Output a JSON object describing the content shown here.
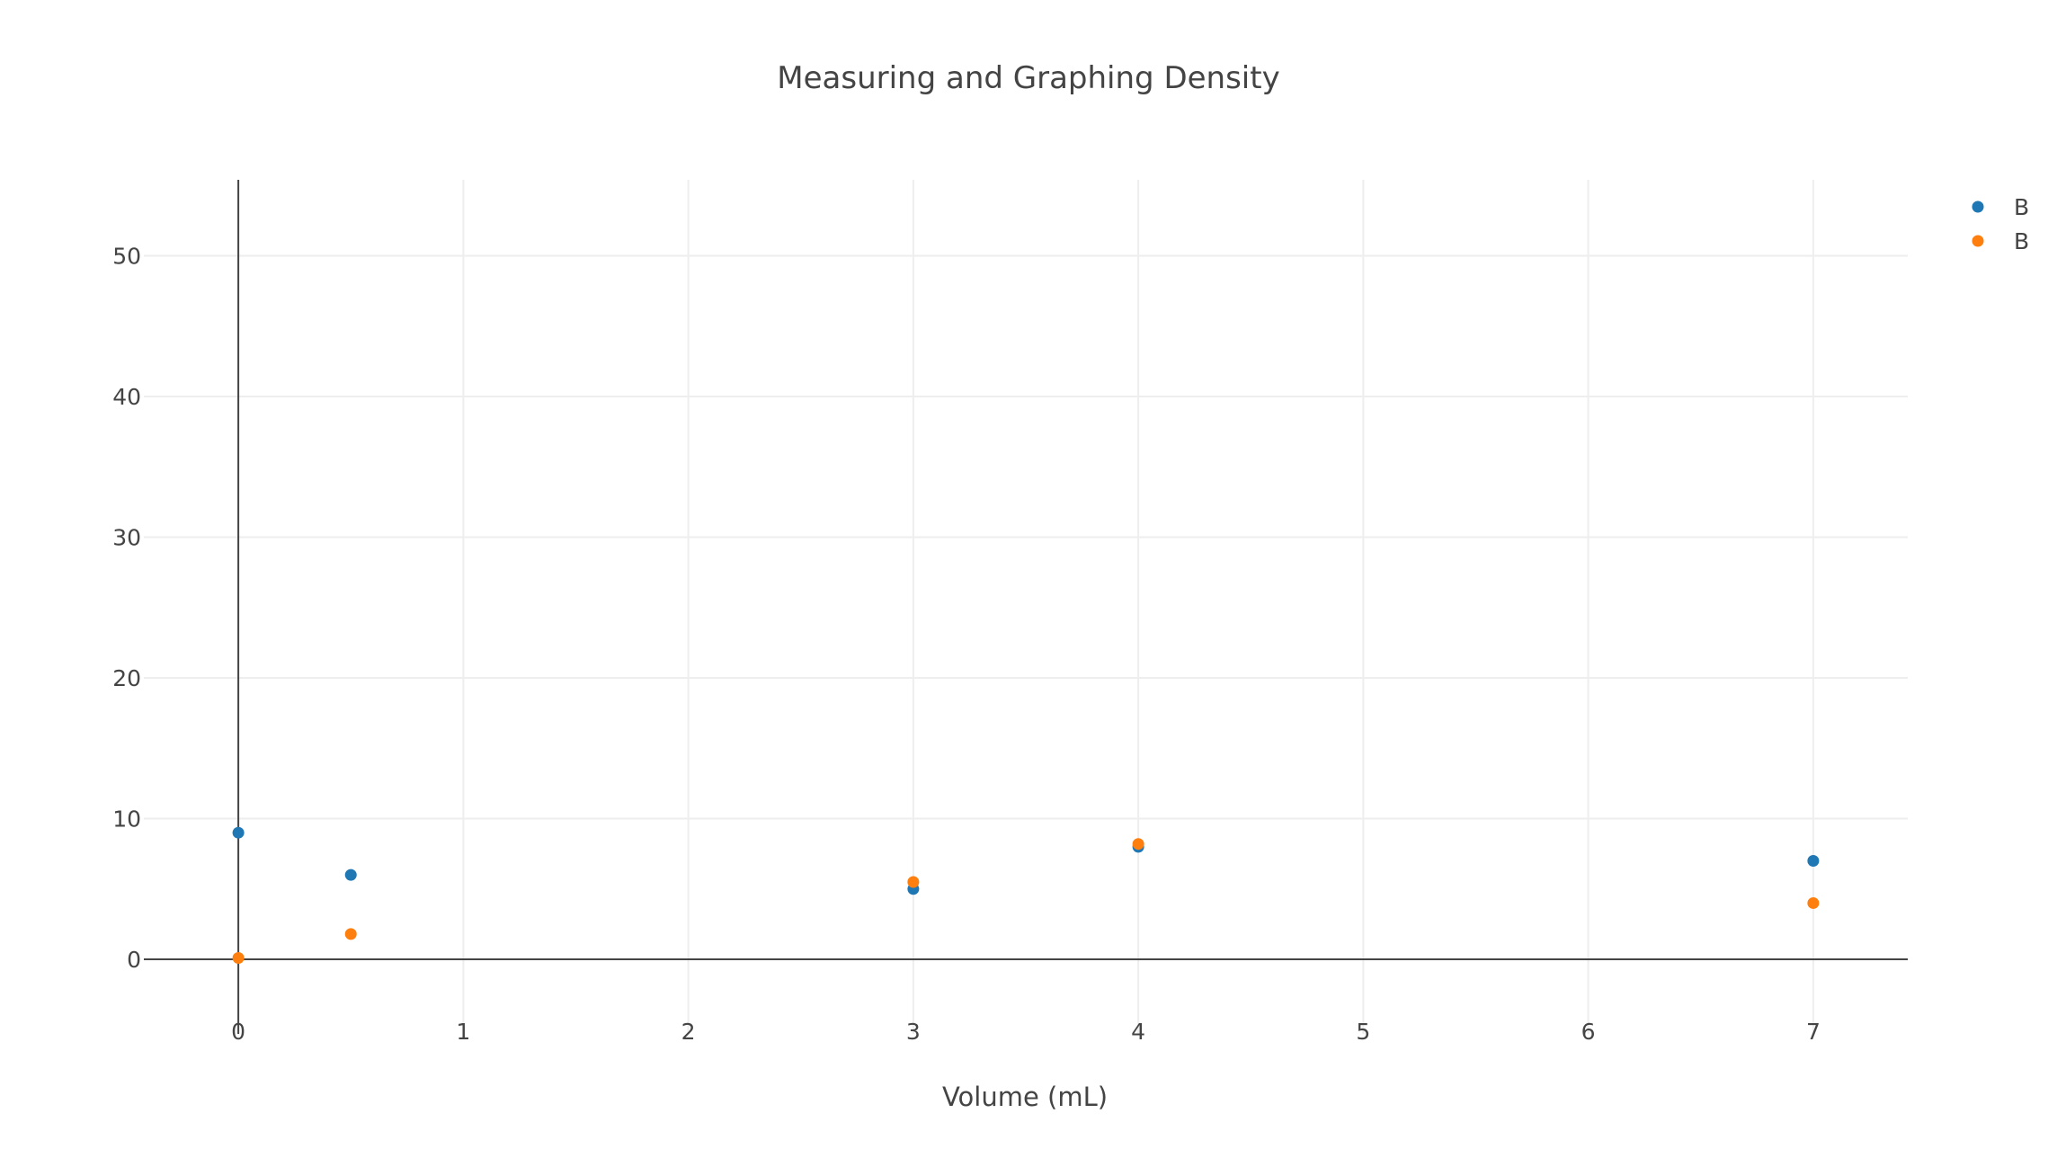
{
  "chart_data": {
    "type": "scatter",
    "title": "Measuring and Graphing Density",
    "xlabel": "Volume (mL)",
    "ylabel": "",
    "xlim": [
      -0.42,
      7.42
    ],
    "ylim": [
      -5.3,
      55.4
    ],
    "xticks": [
      0,
      1,
      2,
      3,
      4,
      5,
      6,
      7
    ],
    "yticks": [
      0,
      10,
      20,
      30,
      40,
      50
    ],
    "grid": true,
    "legend_position": "top-right",
    "series": [
      {
        "name": "B",
        "color": "#1f77b4",
        "x": [
          0,
          0.5,
          3,
          4,
          7
        ],
        "y": [
          9,
          6,
          5,
          8,
          7
        ]
      },
      {
        "name": "B",
        "color": "#ff7f0e",
        "x": [
          0,
          0.5,
          3,
          4,
          7
        ],
        "y": [
          0.1,
          1.8,
          5.5,
          8.2,
          4
        ]
      }
    ]
  }
}
